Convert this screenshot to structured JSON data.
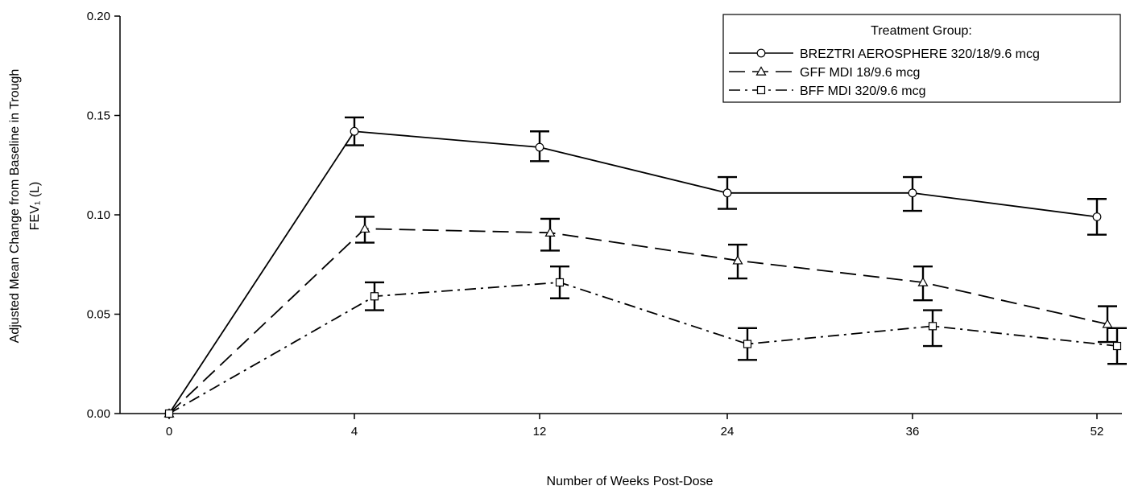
{
  "chart_data": {
    "type": "line",
    "x_categories": [
      "0",
      "4",
      "12",
      "24",
      "36",
      "52"
    ],
    "xlabel": "Number of Weeks Post-Dose",
    "ylabel_line1": "Adjusted Mean Change from Baseline in Trough",
    "ylabel_line2": "FEV₁ (L)",
    "ylim": [
      0,
      0.2
    ],
    "yticks": [
      "0.00",
      "0.05",
      "0.10",
      "0.15",
      "0.20"
    ],
    "grid": false,
    "legend": {
      "title": "Treatment Group:",
      "placement": "top-right"
    },
    "series": [
      {
        "name": "BREZTRI AEROSPHERE 320/18/9.6 mcg",
        "marker": "circle",
        "dash": "solid",
        "points": [
          {
            "week": 0,
            "mean": 0.0,
            "lower": 0.0,
            "upper": 0.0
          },
          {
            "week": 4,
            "mean": 0.142,
            "lower": 0.135,
            "upper": 0.149
          },
          {
            "week": 12,
            "mean": 0.134,
            "lower": 0.127,
            "upper": 0.142
          },
          {
            "week": 24,
            "mean": 0.111,
            "lower": 0.103,
            "upper": 0.119
          },
          {
            "week": 36,
            "mean": 0.111,
            "lower": 0.102,
            "upper": 0.119
          },
          {
            "week": 52,
            "mean": 0.099,
            "lower": 0.09,
            "upper": 0.108
          }
        ]
      },
      {
        "name": "GFF MDI 18/9.6 mcg",
        "marker": "triangle",
        "dash": "long-dash",
        "points": [
          {
            "week": 0,
            "mean": 0.0,
            "lower": 0.0,
            "upper": 0.0
          },
          {
            "week": 4,
            "mean": 0.093,
            "lower": 0.086,
            "upper": 0.099
          },
          {
            "week": 12,
            "mean": 0.091,
            "lower": 0.082,
            "upper": 0.098
          },
          {
            "week": 24,
            "mean": 0.077,
            "lower": 0.068,
            "upper": 0.085
          },
          {
            "week": 36,
            "mean": 0.066,
            "lower": 0.057,
            "upper": 0.074
          },
          {
            "week": 52,
            "mean": 0.045,
            "lower": 0.036,
            "upper": 0.054
          }
        ]
      },
      {
        "name": "BFF MDI 320/9.6 mcg",
        "marker": "square",
        "dash": "dash-dot",
        "points": [
          {
            "week": 0,
            "mean": 0.0,
            "lower": 0.0,
            "upper": 0.0
          },
          {
            "week": 4,
            "mean": 0.059,
            "lower": 0.052,
            "upper": 0.066
          },
          {
            "week": 12,
            "mean": 0.066,
            "lower": 0.058,
            "upper": 0.074
          },
          {
            "week": 24,
            "mean": 0.035,
            "lower": 0.027,
            "upper": 0.043
          },
          {
            "week": 36,
            "mean": 0.044,
            "lower": 0.034,
            "upper": 0.052
          },
          {
            "week": 52,
            "mean": 0.034,
            "lower": 0.025,
            "upper": 0.043
          }
        ]
      }
    ]
  }
}
